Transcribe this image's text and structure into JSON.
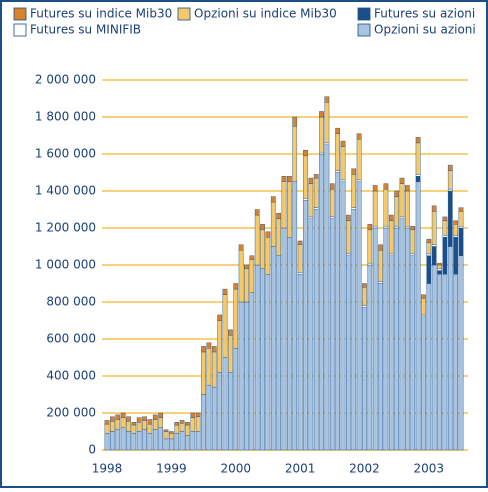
{
  "chart_data": {
    "type": "stacked_bar",
    "categories": [
      "1998",
      null,
      null,
      null,
      null,
      null,
      null,
      null,
      null,
      null,
      null,
      null,
      "1999",
      null,
      null,
      null,
      null,
      null,
      null,
      null,
      null,
      null,
      null,
      null,
      "2000",
      null,
      null,
      null,
      null,
      null,
      null,
      null,
      null,
      null,
      null,
      null,
      "2001",
      null,
      null,
      null,
      null,
      null,
      null,
      null,
      null,
      null,
      null,
      null,
      "2002",
      null,
      null,
      null,
      null,
      null,
      null,
      null,
      null,
      null,
      null,
      null,
      "2003",
      null,
      null,
      null,
      null,
      null,
      null
    ],
    "series": [
      {
        "name": "Futures su indice Mib30",
        "color": "#d9822b",
        "values": [
          20000,
          25000,
          25000,
          25000,
          25000,
          15000,
          25000,
          20000,
          25000,
          25000,
          25000,
          10000,
          10000,
          15000,
          15000,
          15000,
          25000,
          20000,
          30000,
          30000,
          30000,
          30000,
          30000,
          30000,
          30000,
          30000,
          20000,
          20000,
          30000,
          30000,
          30000,
          30000,
          30000,
          30000,
          30000,
          50000,
          20000,
          30000,
          30000,
          20000,
          30000,
          30000,
          30000,
          30000,
          30000,
          30000,
          30000,
          30000,
          20000,
          30000,
          30000,
          30000,
          30000,
          30000,
          30000,
          30000,
          30000,
          20000,
          30000,
          20000,
          20000,
          30000,
          10000,
          20000,
          30000,
          20000,
          20000
        ]
      },
      {
        "name": "Opzioni su indice Mib30",
        "color": "#f5c86a",
        "values": [
          50000,
          55000,
          55000,
          55000,
          55000,
          45000,
          50000,
          50000,
          50000,
          55000,
          55000,
          40000,
          30000,
          45000,
          45000,
          55000,
          75000,
          80000,
          230000,
          200000,
          190000,
          280000,
          340000,
          200000,
          320000,
          280000,
          180000,
          180000,
          270000,
          210000,
          200000,
          240000,
          200000,
          250000,
          300000,
          300000,
          150000,
          230000,
          180000,
          160000,
          190000,
          220000,
          150000,
          200000,
          180000,
          180000,
          180000,
          220000,
          100000,
          180000,
          190000,
          170000,
          200000,
          180000,
          160000,
          180000,
          190000,
          130000,
          170000,
          90000,
          60000,
          180000,
          20000,
          80000,
          100000,
          60000,
          80000
        ]
      },
      {
        "name": "Futures su azioni",
        "color": "#1a4f8a",
        "values": [
          0,
          0,
          0,
          0,
          0,
          0,
          0,
          0,
          0,
          0,
          0,
          0,
          0,
          0,
          0,
          0,
          0,
          0,
          0,
          0,
          0,
          0,
          0,
          0,
          0,
          0,
          0,
          0,
          0,
          0,
          0,
          0,
          0,
          0,
          0,
          0,
          0,
          0,
          0,
          0,
          0,
          0,
          0,
          0,
          0,
          0,
          0,
          0,
          0,
          0,
          0,
          0,
          0,
          0,
          0,
          0,
          0,
          0,
          30000,
          0,
          150000,
          100000,
          20000,
          200000,
          300000,
          200000,
          150000
        ]
      },
      {
        "name": "Futures su MINIFIB",
        "color": "#ffffff",
        "values": [
          0,
          0,
          0,
          0,
          0,
          0,
          0,
          0,
          0,
          0,
          0,
          0,
          0,
          0,
          0,
          0,
          0,
          0,
          0,
          0,
          0,
          0,
          0,
          0,
          0,
          0,
          0,
          0,
          0,
          0,
          0,
          0,
          0,
          0,
          0,
          0,
          10000,
          10000,
          10000,
          10000,
          10000,
          10000,
          10000,
          10000,
          10000,
          10000,
          10000,
          10000,
          10000,
          10000,
          10000,
          10000,
          10000,
          10000,
          10000,
          10000,
          10000,
          10000,
          10000,
          10000,
          10000,
          10000,
          10000,
          10000,
          10000,
          10000,
          10000
        ]
      },
      {
        "name": "Opzioni su azioni",
        "color": "#a8c4e0",
        "values": [
          90000,
          100000,
          110000,
          120000,
          100000,
          90000,
          100000,
          110000,
          90000,
          110000,
          120000,
          60000,
          60000,
          90000,
          100000,
          80000,
          100000,
          100000,
          300000,
          350000,
          340000,
          420000,
          500000,
          420000,
          550000,
          800000,
          800000,
          850000,
          1000000,
          980000,
          950000,
          1100000,
          1050000,
          1200000,
          1150000,
          1450000,
          950000,
          1350000,
          1250000,
          1300000,
          1600000,
          1650000,
          1250000,
          1500000,
          1450000,
          1050000,
          1300000,
          1450000,
          770000,
          1000000,
          1200000,
          900000,
          1200000,
          1050000,
          1200000,
          1250000,
          1200000,
          1050000,
          1450000,
          720000,
          900000,
          1000000,
          950000,
          950000,
          1100000,
          950000,
          1050000
        ]
      }
    ],
    "ylim": [
      0,
      2000000
    ],
    "yticks": [
      0,
      {
        "value": 200000,
        "label": "200 000"
      },
      {
        "value": 400000,
        "label": "400 000"
      },
      {
        "value": 600000,
        "label": "600 000"
      },
      {
        "value": 800000,
        "label": "800 000"
      },
      {
        "value": 1000000,
        "label": "1 000 000"
      },
      {
        "value": 1200000,
        "label": "1 200 000"
      },
      {
        "value": 1400000,
        "label": "1 400 000"
      },
      {
        "value": 1600000,
        "label": "1 600 000"
      },
      {
        "value": 1800000,
        "label": "1 800 000"
      },
      {
        "value": 2000000,
        "label": "2 000 000"
      }
    ],
    "grid": true
  }
}
